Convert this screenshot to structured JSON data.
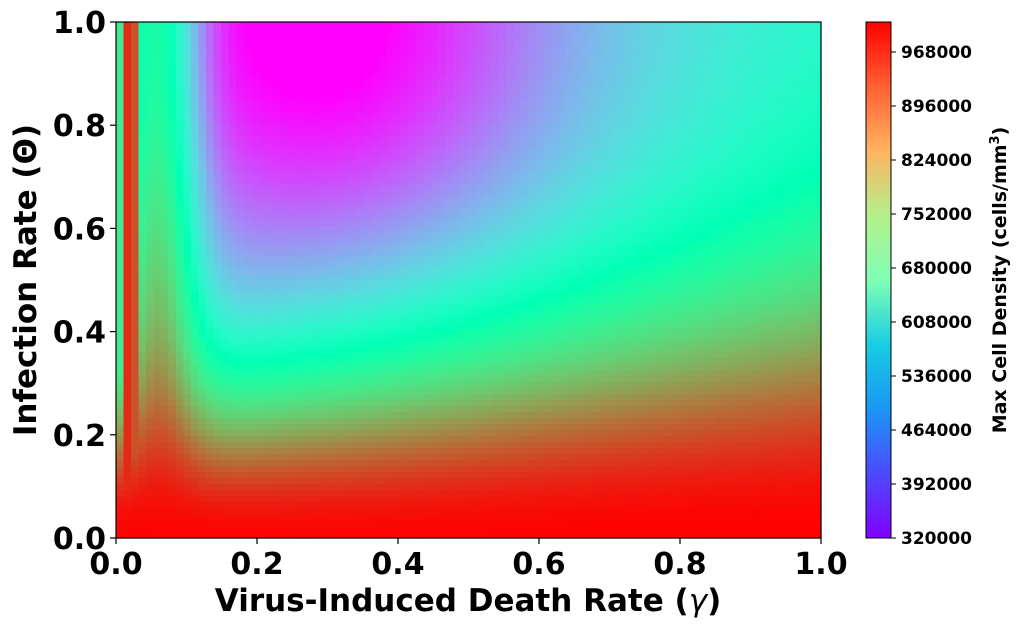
{
  "chart_data": {
    "type": "heatmap",
    "title": "",
    "xlabel": "Virus-Induced Death Rate (",
    "xlabel_symbol": "γ",
    "xlabel_end": ")",
    "ylabel": "Infection Rate (Θ)",
    "xlim": [
      0.0,
      1.0
    ],
    "ylim": [
      0.0,
      1.0
    ],
    "x_ticks": [
      "0.0",
      "0.2",
      "0.4",
      "0.6",
      "0.8",
      "1.0"
    ],
    "y_ticks": [
      "0.0",
      "0.2",
      "0.4",
      "0.6",
      "0.8",
      "1.0"
    ],
    "colorbar": {
      "label": "Max Cell Density (cells/mm",
      "label_superscript": "3",
      "label_end": ")",
      "min": 320000,
      "max": 1008000,
      "ticks": [
        "320000",
        "392000",
        "464000",
        "536000",
        "608000",
        "680000",
        "752000",
        "824000",
        "896000",
        "968000"
      ],
      "colormap": "rainbow"
    },
    "grid": false
  }
}
